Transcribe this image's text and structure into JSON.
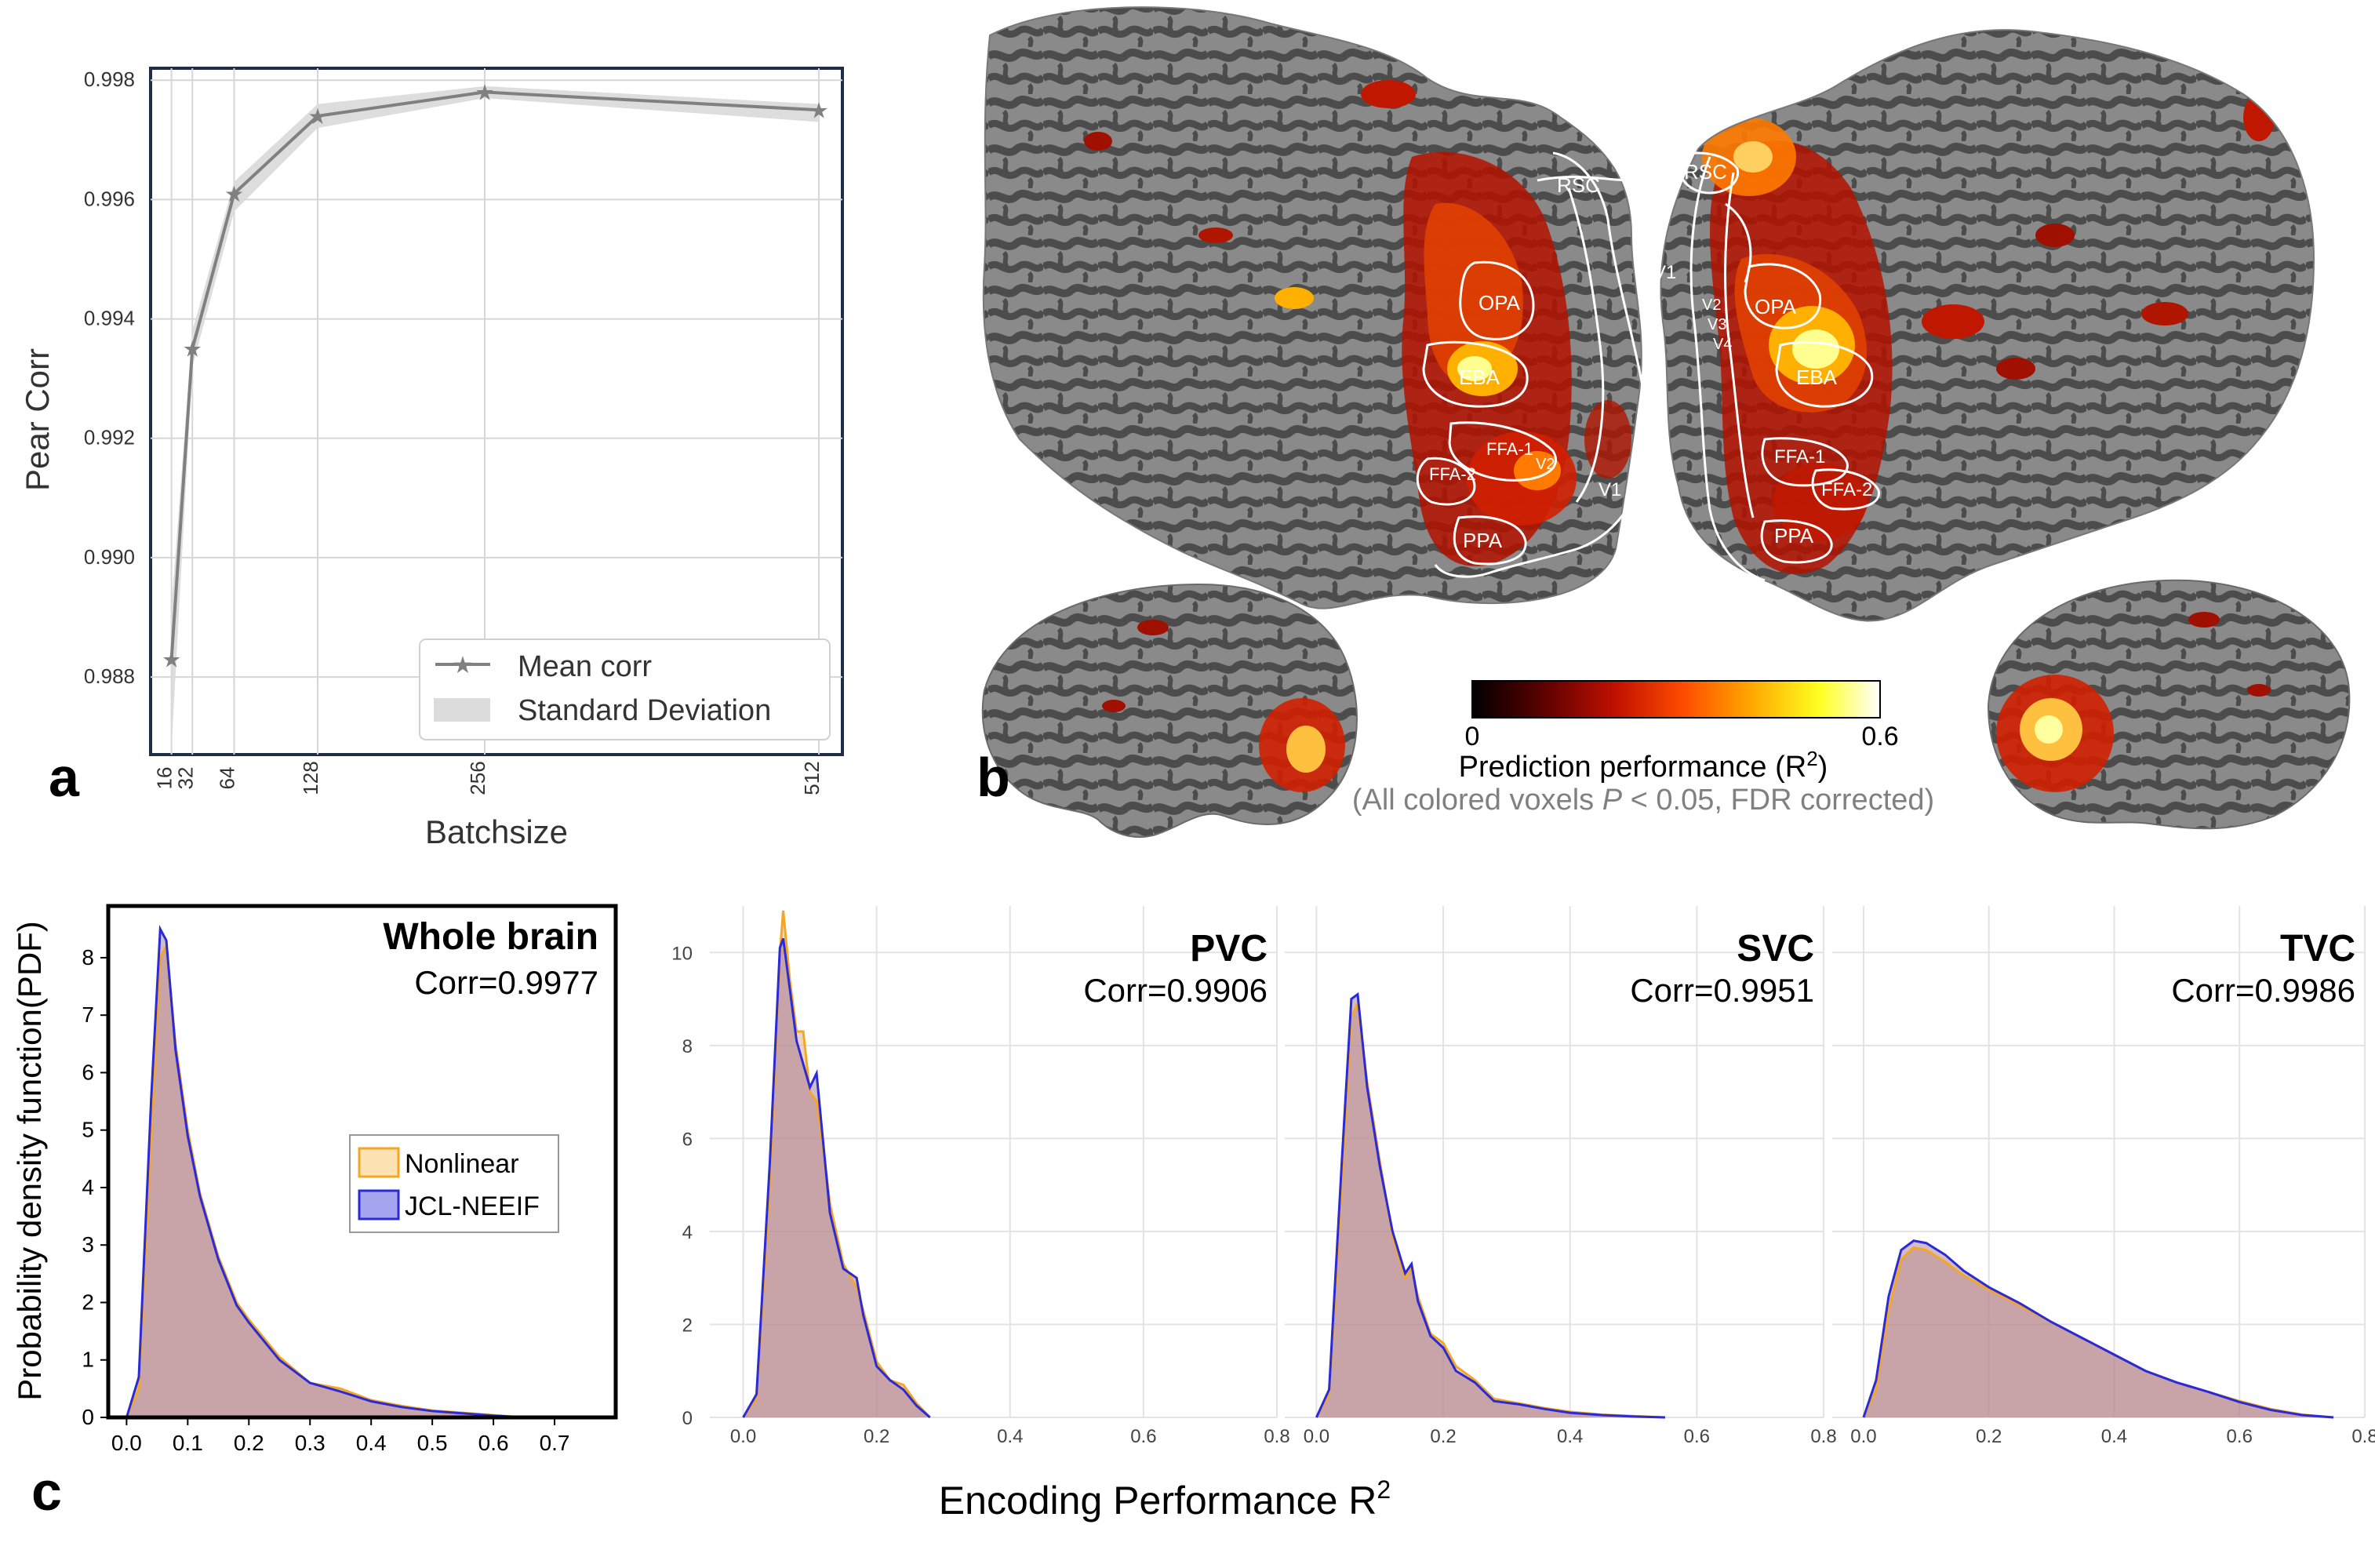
{
  "panel_labels": {
    "a": "a",
    "b": "b",
    "c": "c"
  },
  "chart_data": [
    {
      "id": "panel-a",
      "type": "line",
      "title": "",
      "xlabel": "Batchsize",
      "ylabel": "Pear Corr",
      "x": [
        16,
        32,
        64,
        128,
        256,
        512
      ],
      "x_tick_labels": [
        "16",
        "32",
        "64",
        "128",
        "256",
        "512"
      ],
      "xlim": [
        0,
        530
      ],
      "ylim": [
        0.9867,
        0.9982
      ],
      "y_ticks": [
        0.988,
        0.99,
        0.992,
        0.994,
        0.996,
        0.998
      ],
      "y_tick_labels": [
        "0.988",
        "0.990",
        "0.992",
        "0.994",
        "0.996",
        "0.998"
      ],
      "grid": true,
      "legend_position": "bottom-right",
      "series": [
        {
          "name": "Mean corr",
          "values": [
            0.9883,
            0.9935,
            0.9961,
            0.9974,
            0.9978,
            0.9975
          ],
          "color": "#808080",
          "marker": "star"
        },
        {
          "name": "Standard Deviation",
          "type": "band",
          "lower": [
            0.9868,
            0.9932,
            0.9958,
            0.9972,
            0.9977,
            0.9973
          ],
          "upper": [
            0.9892,
            0.9938,
            0.9963,
            0.9976,
            0.9979,
            0.9976
          ],
          "color": "#d9d9d9"
        }
      ]
    },
    {
      "id": "panel-c-whole",
      "type": "area",
      "title": "Whole brain",
      "subtitle": "Corr=0.9977",
      "xlabel": "",
      "ylabel": "Probability density function(PDF)",
      "xlim": [
        -0.03,
        0.8
      ],
      "ylim": [
        0,
        8.9
      ],
      "x_ticks": [
        0.0,
        0.1,
        0.2,
        0.3,
        0.4,
        0.5,
        0.6,
        0.7
      ],
      "x_tick_labels": [
        "0.0",
        "0.1",
        "0.2",
        "0.3",
        "0.4",
        "0.5",
        "0.6",
        "0.7"
      ],
      "y_ticks": [
        0,
        1,
        2,
        3,
        4,
        5,
        6,
        7,
        8
      ],
      "y_tick_labels": [
        "0",
        "1",
        "2",
        "3",
        "4",
        "5",
        "6",
        "7",
        "8"
      ],
      "grid": false,
      "legend_position": "center-right",
      "series": [
        {
          "name": "Nonlinear",
          "color": "#f5a623",
          "x": [
            0.0,
            0.02,
            0.04,
            0.055,
            0.065,
            0.08,
            0.1,
            0.12,
            0.15,
            0.18,
            0.2,
            0.25,
            0.3,
            0.35,
            0.4,
            0.45,
            0.5,
            0.55,
            0.6,
            0.65
          ],
          "values": [
            0,
            0.5,
            4.8,
            8.0,
            8.2,
            6.5,
            5.0,
            3.9,
            2.8,
            2.0,
            1.7,
            1.05,
            0.6,
            0.5,
            0.3,
            0.2,
            0.12,
            0.08,
            0.04,
            0.0
          ]
        },
        {
          "name": "JCL-NEEIF",
          "color": "#2a2ad6",
          "x": [
            0.0,
            0.02,
            0.04,
            0.055,
            0.065,
            0.08,
            0.1,
            0.12,
            0.15,
            0.18,
            0.2,
            0.25,
            0.3,
            0.35,
            0.4,
            0.45,
            0.5,
            0.55,
            0.6,
            0.65
          ],
          "values": [
            0,
            0.7,
            5.5,
            8.5,
            8.3,
            6.4,
            4.9,
            3.85,
            2.75,
            1.95,
            1.65,
            1.0,
            0.6,
            0.45,
            0.28,
            0.18,
            0.11,
            0.07,
            0.03,
            0.0
          ]
        }
      ]
    },
    {
      "id": "panel-c-pvc",
      "type": "area",
      "title": "PVC",
      "subtitle": "Corr=0.9906",
      "xlabel": "",
      "ylabel": "",
      "xlim": [
        -0.05,
        0.8
      ],
      "ylim": [
        0,
        11.0
      ],
      "x_ticks": [
        0.0,
        0.2,
        0.4,
        0.6,
        0.8
      ],
      "x_tick_labels": [
        "0.0",
        "0.2",
        "0.4",
        "0.6",
        "0.8"
      ],
      "y_ticks": [
        0,
        2,
        4,
        6,
        8,
        10
      ],
      "y_tick_labels": [
        "0",
        "2",
        "4",
        "6",
        "8",
        "10"
      ],
      "grid": true,
      "series": [
        {
          "name": "Nonlinear",
          "color": "#f5a623",
          "x": [
            0.0,
            0.02,
            0.04,
            0.055,
            0.06,
            0.07,
            0.08,
            0.09,
            0.1,
            0.11,
            0.12,
            0.13,
            0.15,
            0.17,
            0.18,
            0.2,
            0.22,
            0.24,
            0.26,
            0.28
          ],
          "values": [
            0,
            0.4,
            5.0,
            10.0,
            10.9,
            9.4,
            8.3,
            8.3,
            7.0,
            6.8,
            5.8,
            4.6,
            3.3,
            2.8,
            2.3,
            1.2,
            0.8,
            0.7,
            0.3,
            0.0
          ]
        },
        {
          "name": "JCL-NEEIF",
          "color": "#2a2ad6",
          "x": [
            0.0,
            0.02,
            0.04,
            0.055,
            0.06,
            0.07,
            0.08,
            0.09,
            0.1,
            0.11,
            0.12,
            0.13,
            0.15,
            0.17,
            0.18,
            0.2,
            0.22,
            0.24,
            0.26,
            0.28
          ],
          "values": [
            0,
            0.5,
            5.5,
            10.1,
            10.3,
            9.2,
            8.1,
            7.6,
            7.1,
            7.4,
            5.9,
            4.4,
            3.2,
            3.0,
            2.2,
            1.1,
            0.8,
            0.6,
            0.25,
            0.0
          ]
        }
      ]
    },
    {
      "id": "panel-c-svc",
      "type": "area",
      "title": "SVC",
      "subtitle": "Corr=0.9951",
      "xlabel": "",
      "ylabel": "",
      "xlim": [
        -0.05,
        0.8
      ],
      "ylim": [
        0,
        11.0
      ],
      "x_ticks": [
        0.0,
        0.2,
        0.4,
        0.6,
        0.8
      ],
      "x_tick_labels": [
        "0.0",
        "0.2",
        "0.4",
        "0.6",
        "0.8"
      ],
      "grid": true,
      "series": [
        {
          "name": "Nonlinear",
          "color": "#f5a623",
          "x": [
            0.0,
            0.02,
            0.04,
            0.055,
            0.065,
            0.08,
            0.1,
            0.12,
            0.14,
            0.15,
            0.16,
            0.18,
            0.2,
            0.22,
            0.25,
            0.28,
            0.32,
            0.36,
            0.4,
            0.45,
            0.5,
            0.55
          ],
          "values": [
            0,
            0.5,
            5.0,
            8.6,
            8.9,
            7.2,
            5.5,
            3.9,
            3.0,
            3.2,
            2.6,
            1.8,
            1.6,
            1.1,
            0.8,
            0.4,
            0.3,
            0.2,
            0.12,
            0.06,
            0.03,
            0.0
          ]
        },
        {
          "name": "JCL-NEEIF",
          "color": "#2a2ad6",
          "x": [
            0.0,
            0.02,
            0.04,
            0.055,
            0.065,
            0.08,
            0.1,
            0.12,
            0.14,
            0.15,
            0.16,
            0.18,
            0.2,
            0.22,
            0.25,
            0.28,
            0.32,
            0.36,
            0.4,
            0.45,
            0.5,
            0.55
          ],
          "values": [
            0,
            0.6,
            5.5,
            9.0,
            9.1,
            7.1,
            5.4,
            4.0,
            3.1,
            3.3,
            2.5,
            1.75,
            1.5,
            1.0,
            0.75,
            0.35,
            0.28,
            0.18,
            0.1,
            0.05,
            0.02,
            0.0
          ]
        }
      ]
    },
    {
      "id": "panel-c-tvc",
      "type": "area",
      "title": "TVC",
      "subtitle": "Corr=0.9986",
      "xlabel": "",
      "ylabel": "",
      "xlim": [
        -0.05,
        0.8
      ],
      "ylim": [
        0,
        11.0
      ],
      "x_ticks": [
        0.0,
        0.2,
        0.4,
        0.6,
        0.8
      ],
      "x_tick_labels": [
        "0.0",
        "0.2",
        "0.4",
        "0.6",
        "0.8"
      ],
      "grid": true,
      "series": [
        {
          "name": "Nonlinear",
          "color": "#f5a623",
          "x": [
            0.0,
            0.02,
            0.04,
            0.06,
            0.08,
            0.1,
            0.13,
            0.16,
            0.2,
            0.25,
            0.3,
            0.35,
            0.4,
            0.45,
            0.5,
            0.55,
            0.6,
            0.65,
            0.7,
            0.75
          ],
          "values": [
            0,
            0.6,
            2.3,
            3.4,
            3.65,
            3.6,
            3.35,
            3.05,
            2.75,
            2.4,
            2.05,
            1.7,
            1.35,
            1.0,
            0.75,
            0.55,
            0.35,
            0.18,
            0.06,
            0.0
          ]
        },
        {
          "name": "JCL-NEEIF",
          "color": "#2a2ad6",
          "x": [
            0.0,
            0.02,
            0.04,
            0.06,
            0.08,
            0.1,
            0.13,
            0.16,
            0.2,
            0.25,
            0.3,
            0.35,
            0.4,
            0.45,
            0.5,
            0.55,
            0.6,
            0.65,
            0.7,
            0.75
          ],
          "values": [
            0,
            0.8,
            2.6,
            3.6,
            3.8,
            3.75,
            3.5,
            3.15,
            2.8,
            2.45,
            2.05,
            1.7,
            1.35,
            1.0,
            0.75,
            0.55,
            0.33,
            0.16,
            0.05,
            0.0
          ]
        }
      ]
    }
  ],
  "panel_c_shared_xlabel": "Encoding Performance R",
  "panel_c_shared_xlabel_sup": "2",
  "panel_b": {
    "colorbar": {
      "min_label": "0",
      "max_label": "0.6",
      "title": "Prediction performance (R",
      "title_sup": "2",
      "title_end": ")",
      "note_prefix": "(All colored voxels ",
      "note_italic": "P",
      "note_suffix": " < 0.05, FDR corrected)",
      "colormap": [
        "#000000",
        "#5a0000",
        "#c01000",
        "#ff4d00",
        "#ffa500",
        "#ffff20",
        "#ffffff"
      ]
    },
    "left_hemisphere_rois": [
      "RSC",
      "OPA",
      "EBA",
      "FFA-1",
      "FFA-2",
      "PPA",
      "V1",
      "V2"
    ],
    "right_hemisphere_rois": [
      "RSC",
      "V1",
      "V2",
      "V3",
      "V4",
      "OPA",
      "EBA",
      "FFA-1",
      "FFA-2",
      "PPA"
    ],
    "colors": {
      "cortex_dark": "#4a4a4a",
      "cortex_light": "#8a8a8a",
      "roi_outline": "#ffffff"
    }
  }
}
